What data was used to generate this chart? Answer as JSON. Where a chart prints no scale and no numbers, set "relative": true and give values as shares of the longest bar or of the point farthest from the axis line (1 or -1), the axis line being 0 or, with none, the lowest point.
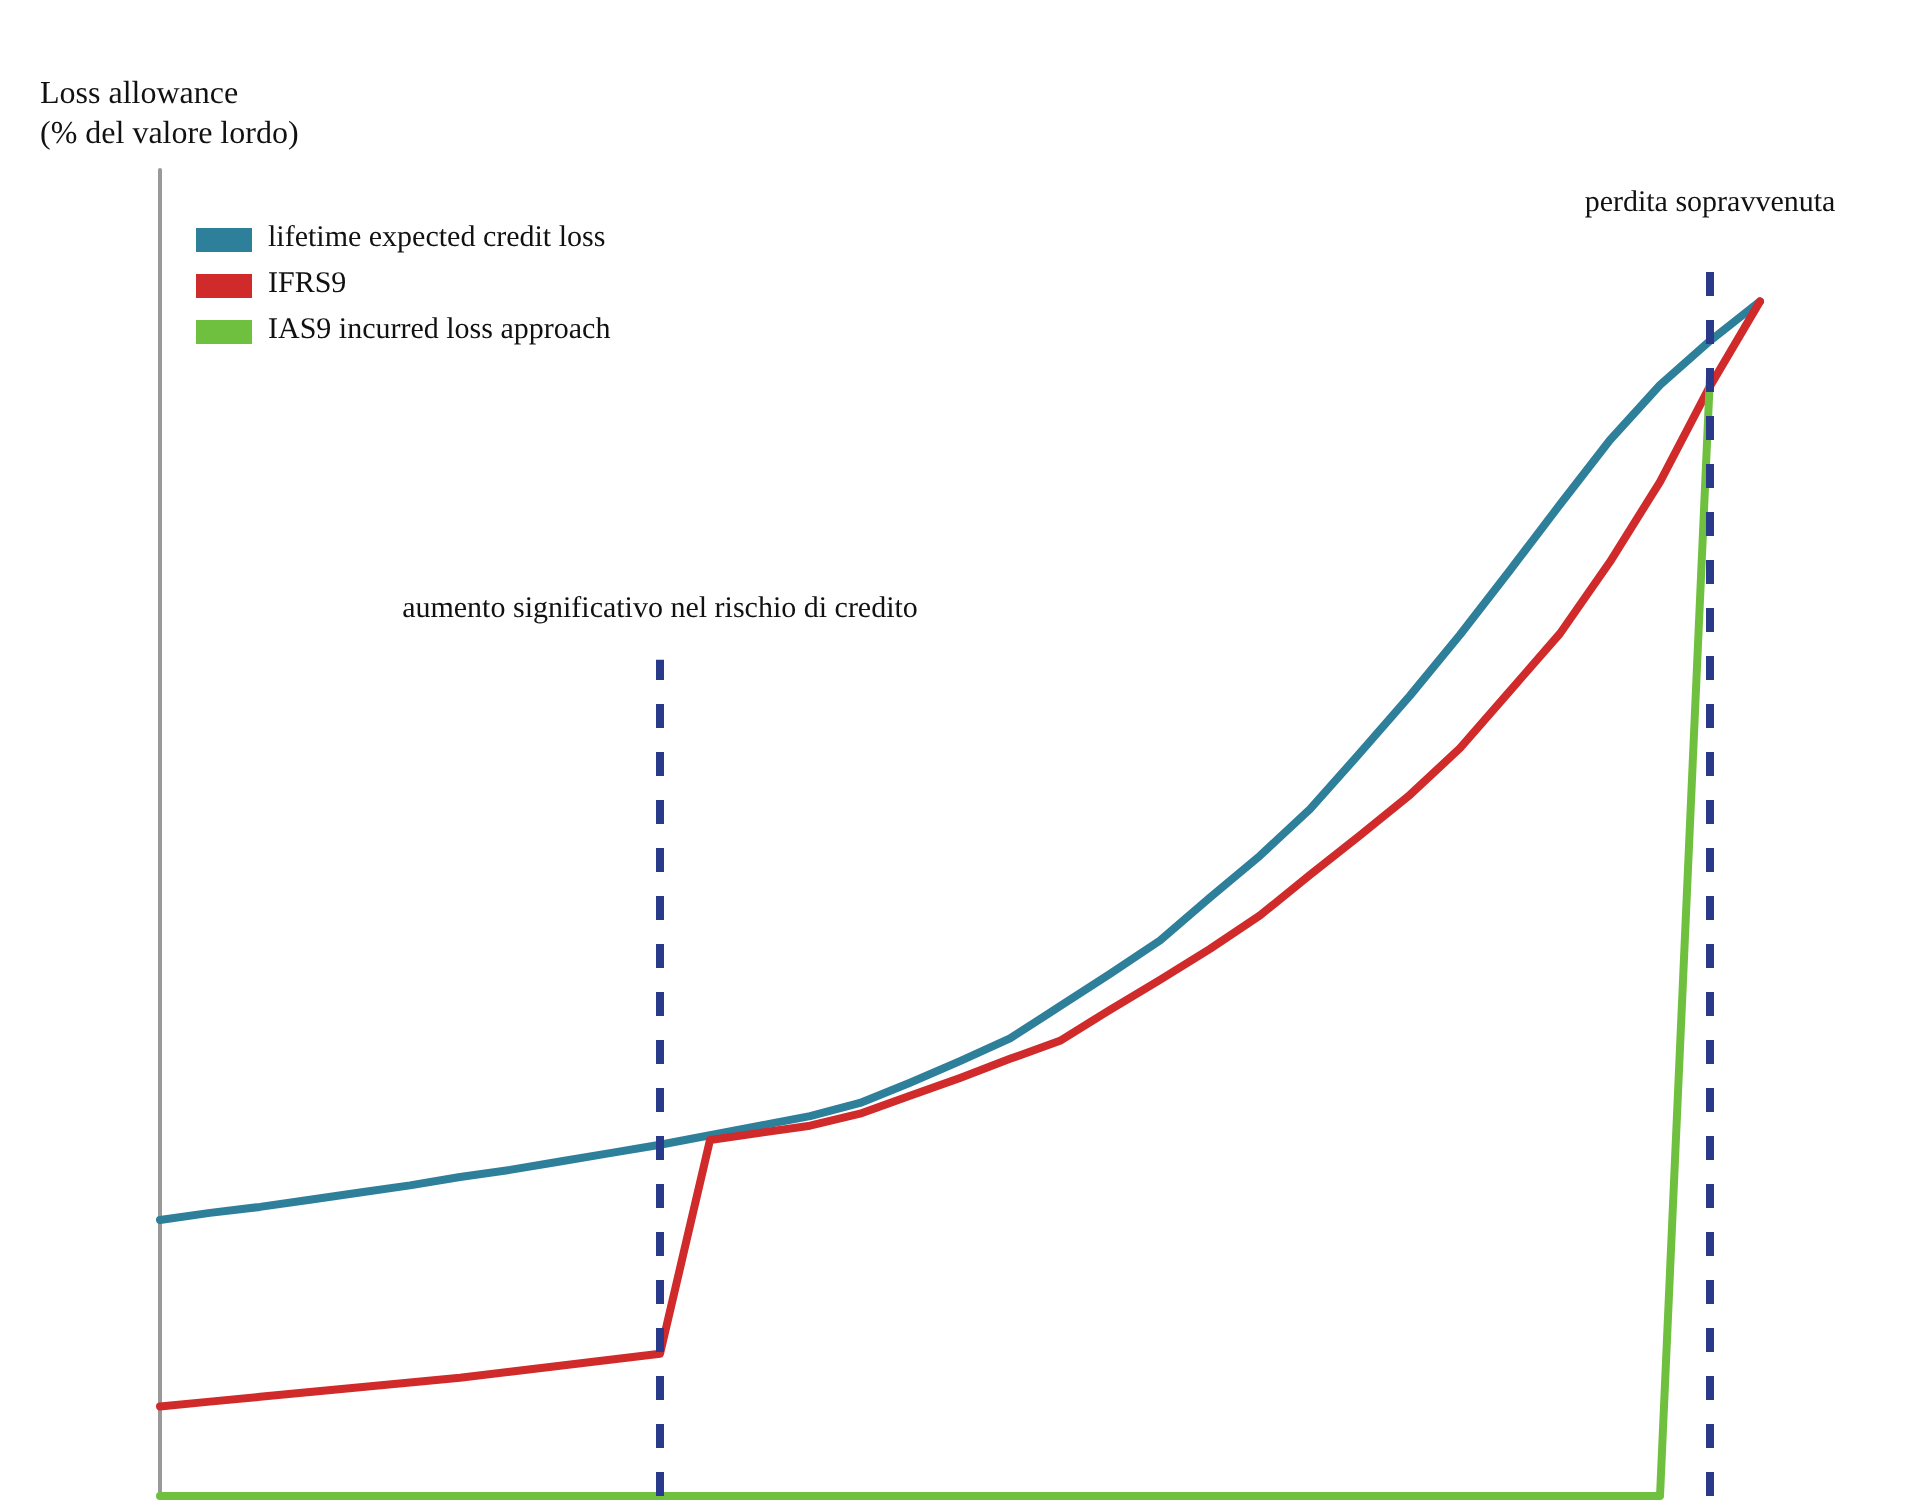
{
  "chart_data": {
    "type": "line",
    "relative": true,
    "ylabel": "Loss allowance\n(% del valore lordo)",
    "legend": "top left",
    "grid": false,
    "marker": "none",
    "line_style": "solid",
    "categories": [
      null,
      null,
      null,
      null,
      null,
      null,
      null,
      null,
      null,
      null,
      null,
      null,
      null,
      null,
      null,
      null,
      null,
      null,
      null,
      null,
      null,
      null,
      null,
      null,
      null,
      null,
      null,
      null,
      null,
      null,
      null,
      null,
      null
    ],
    "series": [
      {
        "name": "lifetime expected credit loss",
        "color": "#2e7f9a",
        "values": [
          0.231,
          0.237,
          0.242,
          0.248,
          0.254,
          0.26,
          0.267,
          0.273,
          0.28,
          0.287,
          0.294,
          0.302,
          0.31,
          0.318,
          0.329,
          0.346,
          0.364,
          0.383,
          0.41,
          0.437,
          0.465,
          0.501,
          0.536,
          0.575,
          0.622,
          0.67,
          0.721,
          0.775,
          0.83,
          0.884,
          0.93,
          0.967,
          1.0
        ]
      },
      {
        "name": "IFRS9",
        "color": "#d02a2a",
        "values": [
          0.075,
          0.079,
          0.083,
          0.087,
          0.091,
          0.095,
          0.099,
          0.104,
          0.109,
          0.114,
          0.119,
          0.298,
          0.304,
          0.31,
          0.32,
          0.335,
          0.35,
          0.366,
          0.381,
          0.407,
          0.432,
          0.458,
          0.486,
          0.52,
          0.553,
          0.587,
          0.626,
          0.674,
          0.722,
          0.782,
          0.849,
          0.929,
          1.0
        ]
      },
      {
        "name": "IAS9 incurred loss approach",
        "color": "#70c040",
        "values": [
          0,
          0,
          0,
          0,
          0,
          0,
          0,
          0,
          0,
          0,
          0,
          0,
          0,
          0,
          0,
          0,
          0,
          0,
          0,
          0,
          0,
          0,
          0,
          0,
          0,
          0,
          0,
          0,
          0,
          0,
          0,
          0.938,
          null
        ]
      }
    ],
    "annotations": [
      "aumento significativo nel rischio di credito",
      "perdita sopravvenuta"
    ]
  }
}
